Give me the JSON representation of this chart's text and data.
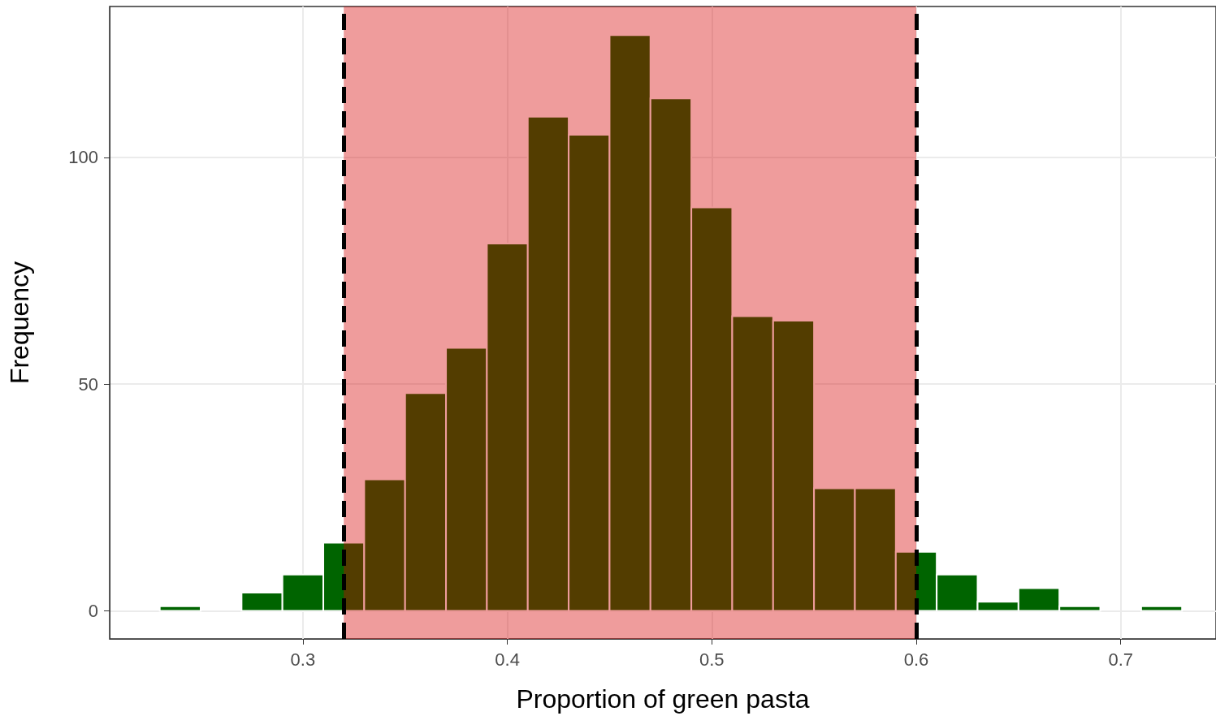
{
  "chart_data": {
    "type": "histogram",
    "xlabel": "Proportion of green pasta",
    "ylabel": "Frequency",
    "bins": [
      0.23,
      0.25,
      0.27,
      0.29,
      0.31,
      0.33,
      0.35,
      0.37,
      0.39,
      0.41,
      0.43,
      0.45,
      0.47,
      0.49,
      0.51,
      0.53,
      0.55,
      0.57,
      0.59,
      0.61,
      0.63,
      0.65,
      0.67,
      0.69,
      0.71,
      0.73
    ],
    "values": [
      1,
      0,
      4,
      8,
      15,
      29,
      48,
      58,
      81,
      109,
      105,
      127,
      113,
      89,
      65,
      64,
      27,
      27,
      13,
      8,
      2,
      5,
      1,
      0,
      1
    ],
    "color": "#006400",
    "xlim": [
      0.2055,
      0.7466
    ],
    "xticks": [
      0.3,
      0.4,
      0.5,
      0.6,
      0.7
    ],
    "ylim": [
      -6.2,
      133.3
    ],
    "yticks": [
      0,
      50,
      100
    ],
    "grid": true,
    "bands": [
      {
        "axis": "x",
        "from": 0.32,
        "to": 0.6,
        "color": "#d70000"
      }
    ],
    "ref_lines": [
      {
        "axis": "x",
        "value": 0.32,
        "color": "#000000",
        "line_style": "dashed"
      },
      {
        "axis": "x",
        "value": 0.6,
        "color": "#000000",
        "line_style": "dashed"
      }
    ]
  }
}
